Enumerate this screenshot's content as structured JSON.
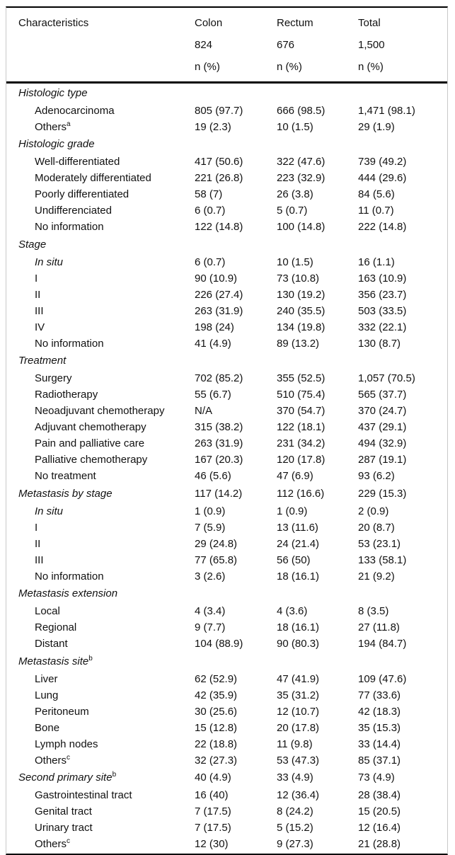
{
  "table": {
    "header": {
      "characteristics": "Characteristics",
      "columns": [
        {
          "label": "Colon",
          "n": "824",
          "unit": "n (%)"
        },
        {
          "label": "Rectum",
          "n": "676",
          "unit": "n (%)"
        },
        {
          "label": "Total",
          "n": "1,500",
          "unit": "n (%)"
        }
      ]
    },
    "rows": [
      {
        "type": "section",
        "label": "Histologic type"
      },
      {
        "type": "item",
        "label": "Adenocarcinoma",
        "values": [
          "805 (97.7)",
          "666 (98.5)",
          "1,471 (98.1)"
        ]
      },
      {
        "type": "item",
        "label": "Others",
        "sup": "a",
        "values": [
          "19 (2.3)",
          "10 (1.5)",
          "29 (1.9)"
        ]
      },
      {
        "type": "section",
        "label": "Histologic grade"
      },
      {
        "type": "item",
        "label": "Well-differentiated",
        "values": [
          "417 (50.6)",
          "322 (47.6)",
          "739 (49.2)"
        ]
      },
      {
        "type": "item",
        "label": "Moderately differentiated",
        "values": [
          "221 (26.8)",
          "223 (32.9)",
          "444 (29.6)"
        ]
      },
      {
        "type": "item",
        "label": "Poorly differentiated",
        "values": [
          "58 (7)",
          "26 (3.8)",
          "84 (5.6)"
        ]
      },
      {
        "type": "item",
        "label": "Undifferenciated",
        "values": [
          "6 (0.7)",
          "5 (0.7)",
          "11 (0.7)"
        ]
      },
      {
        "type": "item",
        "label": "No information",
        "values": [
          "122 (14.8)",
          "100 (14.8)",
          "222 (14.8)"
        ]
      },
      {
        "type": "section",
        "label": "Stage"
      },
      {
        "type": "item",
        "label": "In situ",
        "italic": true,
        "values": [
          "6 (0.7)",
          "10 (1.5)",
          "16 (1.1)"
        ]
      },
      {
        "type": "item",
        "label": "I",
        "values": [
          "90 (10.9)",
          "73 (10.8)",
          "163 (10.9)"
        ]
      },
      {
        "type": "item",
        "label": "II",
        "values": [
          "226 (27.4)",
          "130 (19.2)",
          "356 (23.7)"
        ]
      },
      {
        "type": "item",
        "label": "III",
        "values": [
          "263 (31.9)",
          "240 (35.5)",
          "503 (33.5)"
        ]
      },
      {
        "type": "item",
        "label": "IV",
        "values": [
          "198 (24)",
          "134 (19.8)",
          "332 (22.1)"
        ]
      },
      {
        "type": "item",
        "label": "No information",
        "values": [
          "41 (4.9)",
          "89 (13.2)",
          "130 (8.7)"
        ]
      },
      {
        "type": "section",
        "label": "Treatment"
      },
      {
        "type": "item",
        "label": "Surgery",
        "values": [
          "702 (85.2)",
          "355 (52.5)",
          "1,057 (70.5)"
        ]
      },
      {
        "type": "item",
        "label": "Radiotherapy",
        "values": [
          "55 (6.7)",
          "510 (75.4)",
          "565 (37.7)"
        ]
      },
      {
        "type": "item",
        "label": "Neoadjuvant chemotherapy",
        "values": [
          "N/A",
          "370 (54.7)",
          "370 (24.7)"
        ]
      },
      {
        "type": "item",
        "label": "Adjuvant chemotherapy",
        "values": [
          "315 (38.2)",
          "122 (18.1)",
          "437 (29.1)"
        ]
      },
      {
        "type": "item",
        "label": "Pain and palliative care",
        "values": [
          "263 (31.9)",
          "231 (34.2)",
          "494 (32.9)"
        ]
      },
      {
        "type": "item",
        "label": "Palliative chemotherapy",
        "values": [
          "167 (20.3)",
          "120 (17.8)",
          "287 (19.1)"
        ]
      },
      {
        "type": "item",
        "label": "No treatment",
        "values": [
          "46 (5.6)",
          "47 (6.9)",
          "93 (6.2)"
        ]
      },
      {
        "type": "section",
        "label": "Metastasis by stage",
        "values": [
          "117 (14.2)",
          "112 (16.6)",
          "229 (15.3)"
        ]
      },
      {
        "type": "item",
        "label": "In situ",
        "italic": true,
        "values": [
          "1 (0.9)",
          "1 (0.9)",
          "2 (0.9)"
        ]
      },
      {
        "type": "item",
        "label": "I",
        "values": [
          "7 (5.9)",
          "13 (11.6)",
          "20 (8.7)"
        ]
      },
      {
        "type": "item",
        "label": "II",
        "values": [
          "29 (24.8)",
          "24 (21.4)",
          "53 (23.1)"
        ]
      },
      {
        "type": "item",
        "label": "III",
        "values": [
          "77 (65.8)",
          "56 (50)",
          "133 (58.1)"
        ]
      },
      {
        "type": "item",
        "label": "No information",
        "values": [
          "3 (2.6)",
          "18 (16.1)",
          "21 (9.2)"
        ]
      },
      {
        "type": "section",
        "label": "Metastasis extension"
      },
      {
        "type": "item",
        "label": "Local",
        "values": [
          "4 (3.4)",
          "4 (3.6)",
          "8 (3.5)"
        ]
      },
      {
        "type": "item",
        "label": "Regional",
        "values": [
          "9 (7.7)",
          "18 (16.1)",
          "27 (11.8)"
        ]
      },
      {
        "type": "item",
        "label": "Distant",
        "values": [
          "104 (88.9)",
          "90 (80.3)",
          "194 (84.7)"
        ]
      },
      {
        "type": "section",
        "label": "Metastasis site",
        "sup": "b"
      },
      {
        "type": "item",
        "label": "Liver",
        "values": [
          "62 (52.9)",
          "47 (41.9)",
          "109 (47.6)"
        ]
      },
      {
        "type": "item",
        "label": "Lung",
        "values": [
          "42 (35.9)",
          "35 (31.2)",
          "77 (33.6)"
        ]
      },
      {
        "type": "item",
        "label": "Peritoneum",
        "values": [
          "30 (25.6)",
          "12 (10.7)",
          "42 (18.3)"
        ]
      },
      {
        "type": "item",
        "label": "Bone",
        "values": [
          "15 (12.8)",
          "20 (17.8)",
          "35 (15.3)"
        ]
      },
      {
        "type": "item",
        "label": "Lymph nodes",
        "values": [
          "22 (18.8)",
          "11 (9.8)",
          "33 (14.4)"
        ]
      },
      {
        "type": "item",
        "label": "Others",
        "sup": "c",
        "values": [
          "32 (27.3)",
          "53 (47.3)",
          "85 (37.1)"
        ]
      },
      {
        "type": "section",
        "label": "Second primary site",
        "sup": "b",
        "values": [
          "40 (4.9)",
          "33 (4.9)",
          "73 (4.9)"
        ]
      },
      {
        "type": "item",
        "label": "Gastrointestinal tract",
        "values": [
          "16 (40)",
          "12 (36.4)",
          "28 (38.4)"
        ]
      },
      {
        "type": "item",
        "label": "Genital tract",
        "values": [
          "7 (17.5)",
          "8 (24.2)",
          "15 (20.5)"
        ]
      },
      {
        "type": "item",
        "label": "Urinary tract",
        "values": [
          "7 (17.5)",
          "5 (15.2)",
          "12 (16.4)"
        ]
      },
      {
        "type": "item",
        "label": "Others",
        "sup": "c",
        "values": [
          "12 (30)",
          "9 (27.3)",
          "21 (28.8)"
        ]
      }
    ]
  }
}
